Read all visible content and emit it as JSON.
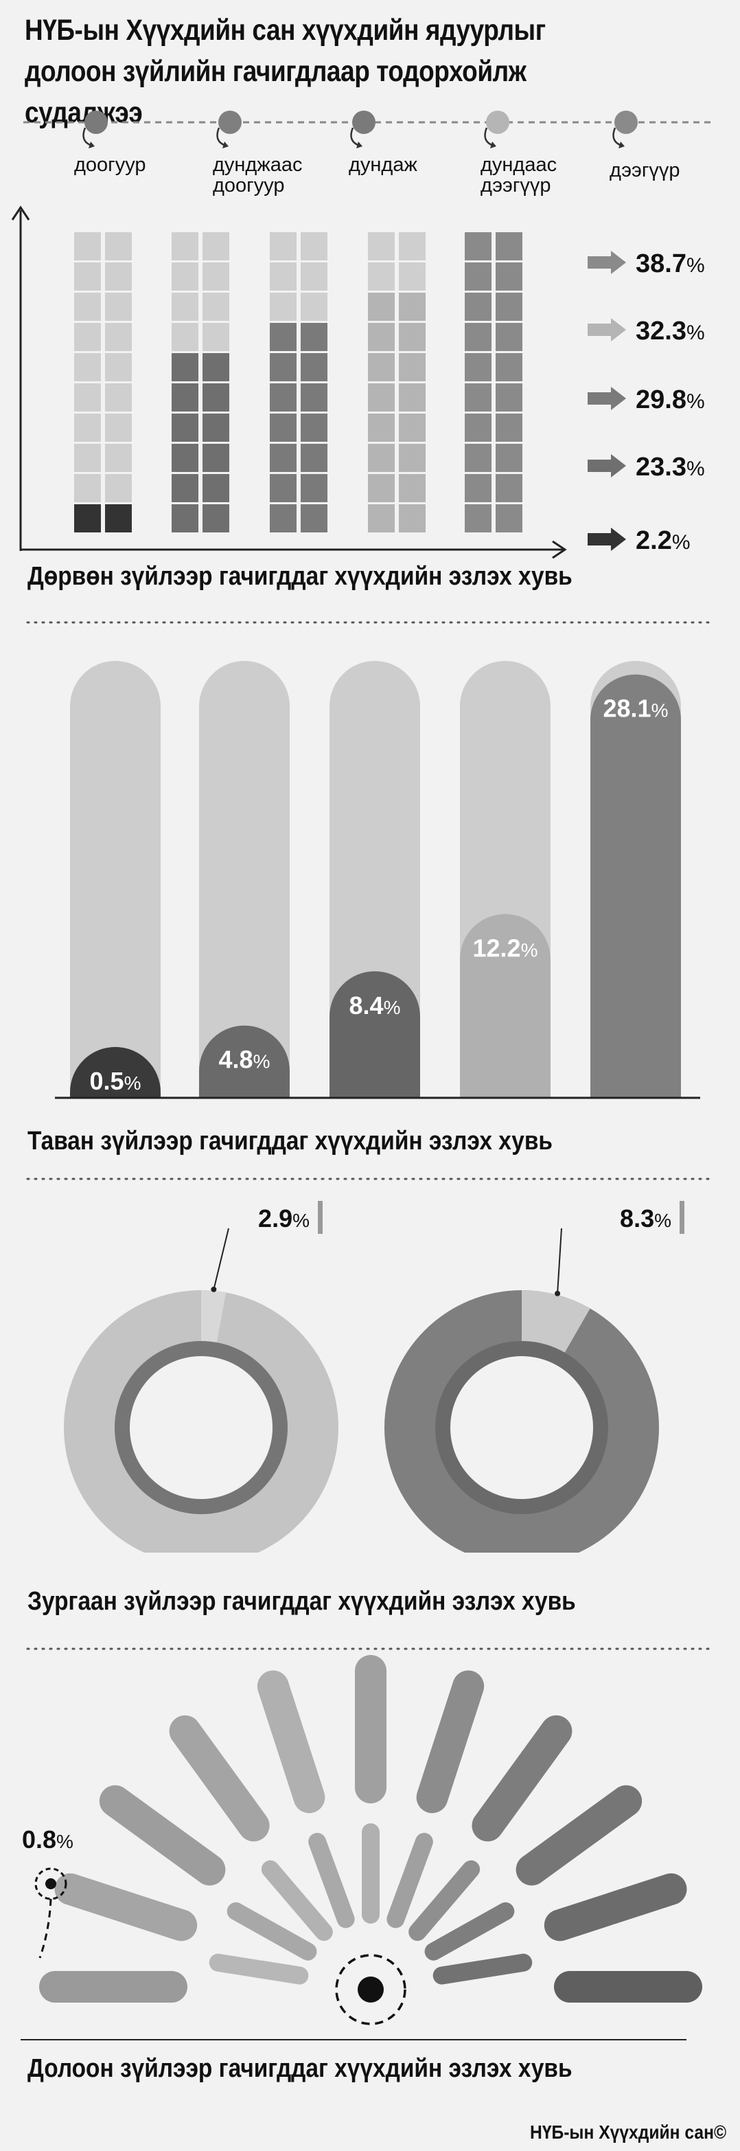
{
  "title": "НҮБ-ын Хүүхдийн сан хүүхдийн ядуурлыг долоон зүйлийн гачигдлаар тодорхойлж судалжээ",
  "levels": [
    {
      "label": "доогуур",
      "color": "#666666"
    },
    {
      "label": "дунджаас доогуур",
      "color": "#555555"
    },
    {
      "label": "дундаж",
      "color": "#6a6a6a"
    },
    {
      "label": "дундаас дээгүүр",
      "color": "#aaaaaa"
    },
    {
      "label": "дээгүүр",
      "color": "#808080"
    }
  ],
  "section_titles": {
    "four": "Дөрвөн зүйлээр гачигддаг хүүхдийн эзлэх хувь",
    "five": "Таван зүйлээр гачигддаг хүүхдийн эзлэх хувь",
    "six": "Зургаан зүйлээр гачигддаг хүүхдийн эзлэх хувь",
    "seven": "Долоон зүйлээр гачигддаг хүүхдийн эзлэх хувь"
  },
  "footer": "НҮБ-ын Хүүхдийн сан©",
  "chart_data": [
    {
      "type": "bar",
      "title": "Дөрвөн зүйлээр гачигддаг хүүхдийн эзлэх хувь",
      "categories": [
        "доогуур",
        "дунджаас доогуур",
        "дундаж",
        "дундаас дээгүүр",
        "дээгүүр"
      ],
      "values": [
        2.2,
        23.3,
        29.8,
        32.3,
        38.7
      ],
      "labels": [
        "2.2",
        "23.3",
        "29.8",
        "32.3",
        "38.7"
      ],
      "unit": "%",
      "colors": [
        "#333333",
        "#6f6f6f",
        "#7a7a7a",
        "#b4b4b4",
        "#8a8a8a"
      ],
      "arrow_colors": [
        "#333333",
        "#6f6f6f",
        "#7a7a7a",
        "#b4b4b4",
        "#8a8a8a"
      ]
    },
    {
      "type": "bar",
      "title": "Таван зүйлээр гачигддаг хүүхдийн эзлэх хувь",
      "categories": [
        "доогуур",
        "дунджаас доогуур",
        "дундаж",
        "дундаас дээгүүр",
        "дээгүүр"
      ],
      "values": [
        0.5,
        4.8,
        8.4,
        12.2,
        28.1
      ],
      "labels": [
        "0.5",
        "4.8",
        "8.4",
        "12.2",
        "28.1"
      ],
      "unit": "%",
      "ylim": [
        0,
        29
      ],
      "colors": [
        "#3a3a3a",
        "#6a6a6a",
        "#666666",
        "#b0b0b0",
        "#808080"
      ]
    },
    {
      "type": "pie",
      "title": "Зургаан зүйлээр гачигддаг хүүхдийн эзлэх хувь",
      "series": [
        {
          "value": 2.9,
          "label": "2.9",
          "fill": "#bdbdbd",
          "remainder": "#c4c4c4",
          "slice": "#d8d8d8"
        },
        {
          "value": 8.3,
          "label": "8.3",
          "fill": "#7a7a7a",
          "remainder": "#7f7f7f",
          "slice": "#c9c9c9"
        }
      ],
      "unit": "%"
    },
    {
      "type": "other",
      "title": "Долоон зүйлээр гачигддаг хүүхдийн эзлэх хувь",
      "value": 0.8,
      "label": "0.8",
      "unit": "%"
    }
  ]
}
